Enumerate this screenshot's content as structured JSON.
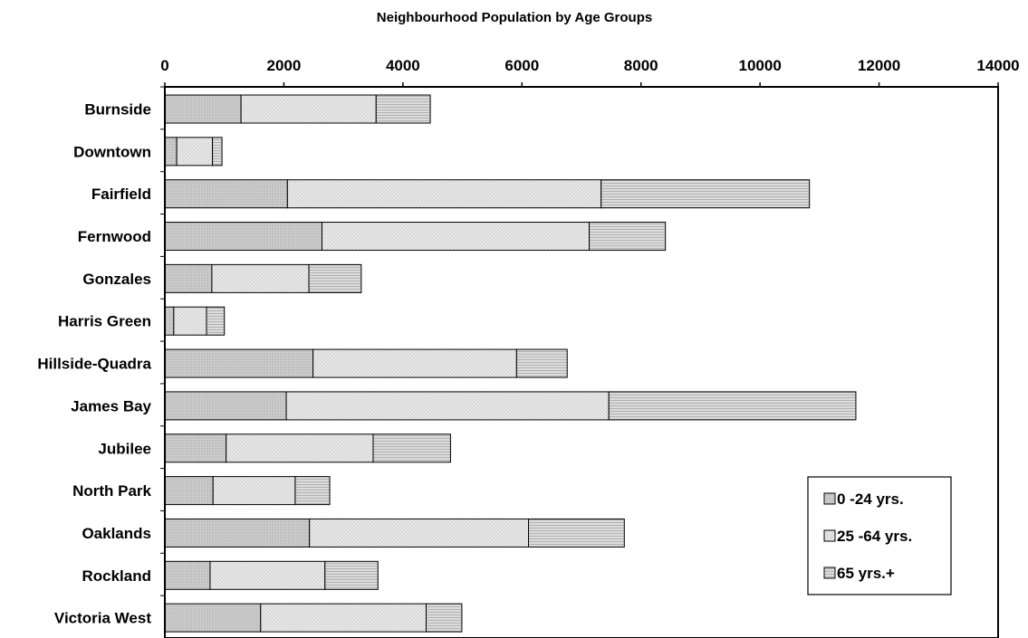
{
  "chart_data": {
    "type": "bar",
    "orientation": "horizontal",
    "stacked": true,
    "title": "Neighbourhood Population by Age Groups",
    "xlabel": "",
    "ylabel": "",
    "xlim": [
      0,
      14000
    ],
    "xticks": [
      "0",
      "2000",
      "4000",
      "6000",
      "8000",
      "10000",
      "12000",
      "14000"
    ],
    "axis_position": "top",
    "grid": false,
    "legend_position": "bottom-right",
    "categories": [
      "Burnside",
      "Downtown",
      "Fairfield",
      "Fernwood",
      "Gonzales",
      "Harris Green",
      "Hillside-Quadra",
      "James Bay",
      "Jubilee",
      "North Park",
      "Oaklands",
      "Rockland",
      "Victoria West"
    ],
    "series": [
      {
        "name": "0 -24 yrs.",
        "values": [
          1280,
          200,
          2060,
          2640,
          790,
          150,
          2490,
          2040,
          1030,
          810,
          2430,
          760,
          1610
        ],
        "color": "#c9c9c9"
      },
      {
        "name": "25 -64 yrs.",
        "values": [
          2270,
          600,
          5270,
          4490,
          1630,
          550,
          3420,
          5420,
          2470,
          1380,
          3680,
          1930,
          2780
        ],
        "color": "#e3e3e3"
      },
      {
        "name": "65 yrs.+",
        "values": [
          910,
          160,
          3500,
          1280,
          880,
          300,
          850,
          4150,
          1300,
          580,
          1610,
          890,
          600
        ],
        "color": "#d6d6d6"
      }
    ]
  }
}
